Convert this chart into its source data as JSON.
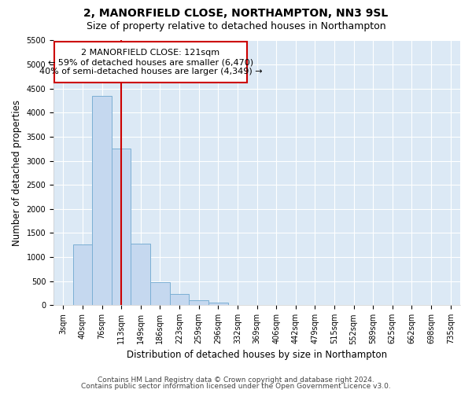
{
  "title1": "2, MANORFIELD CLOSE, NORTHAMPTON, NN3 9SL",
  "title2": "Size of property relative to detached houses in Northampton",
  "xlabel": "Distribution of detached houses by size in Northampton",
  "ylabel": "Number of detached properties",
  "categories": [
    "3sqm",
    "40sqm",
    "76sqm",
    "113sqm",
    "149sqm",
    "186sqm",
    "223sqm",
    "259sqm",
    "296sqm",
    "332sqm",
    "369sqm",
    "406sqm",
    "442sqm",
    "479sqm",
    "515sqm",
    "552sqm",
    "589sqm",
    "625sqm",
    "662sqm",
    "698sqm",
    "735sqm"
  ],
  "bar_heights": [
    0,
    1270,
    4350,
    3250,
    1280,
    480,
    230,
    100,
    60,
    0,
    0,
    0,
    0,
    0,
    0,
    0,
    0,
    0,
    0,
    0,
    0
  ],
  "bar_color": "#c5d8ef",
  "bar_edge_color": "#7bafd4",
  "background_color": "#dce9f5",
  "grid_color": "#ffffff",
  "vline_x_idx": 3,
  "vline_color": "#cc0000",
  "annotation_line1": "2 MANORFIELD CLOSE: 121sqm",
  "annotation_line2": "← 59% of detached houses are smaller (6,470)",
  "annotation_line3": "40% of semi-detached houses are larger (4,349) →",
  "annotation_box_color": "#ffffff",
  "annotation_box_edge": "#cc0000",
  "ylim": [
    0,
    5500
  ],
  "yticks": [
    0,
    500,
    1000,
    1500,
    2000,
    2500,
    3000,
    3500,
    4000,
    4500,
    5000,
    5500
  ],
  "footer1": "Contains HM Land Registry data © Crown copyright and database right 2024.",
  "footer2": "Contains public sector information licensed under the Open Government Licence v3.0.",
  "title1_fontsize": 10,
  "title2_fontsize": 9,
  "xlabel_fontsize": 8.5,
  "ylabel_fontsize": 8.5,
  "tick_fontsize": 7,
  "annotation_fontsize": 8,
  "footer_fontsize": 6.5
}
